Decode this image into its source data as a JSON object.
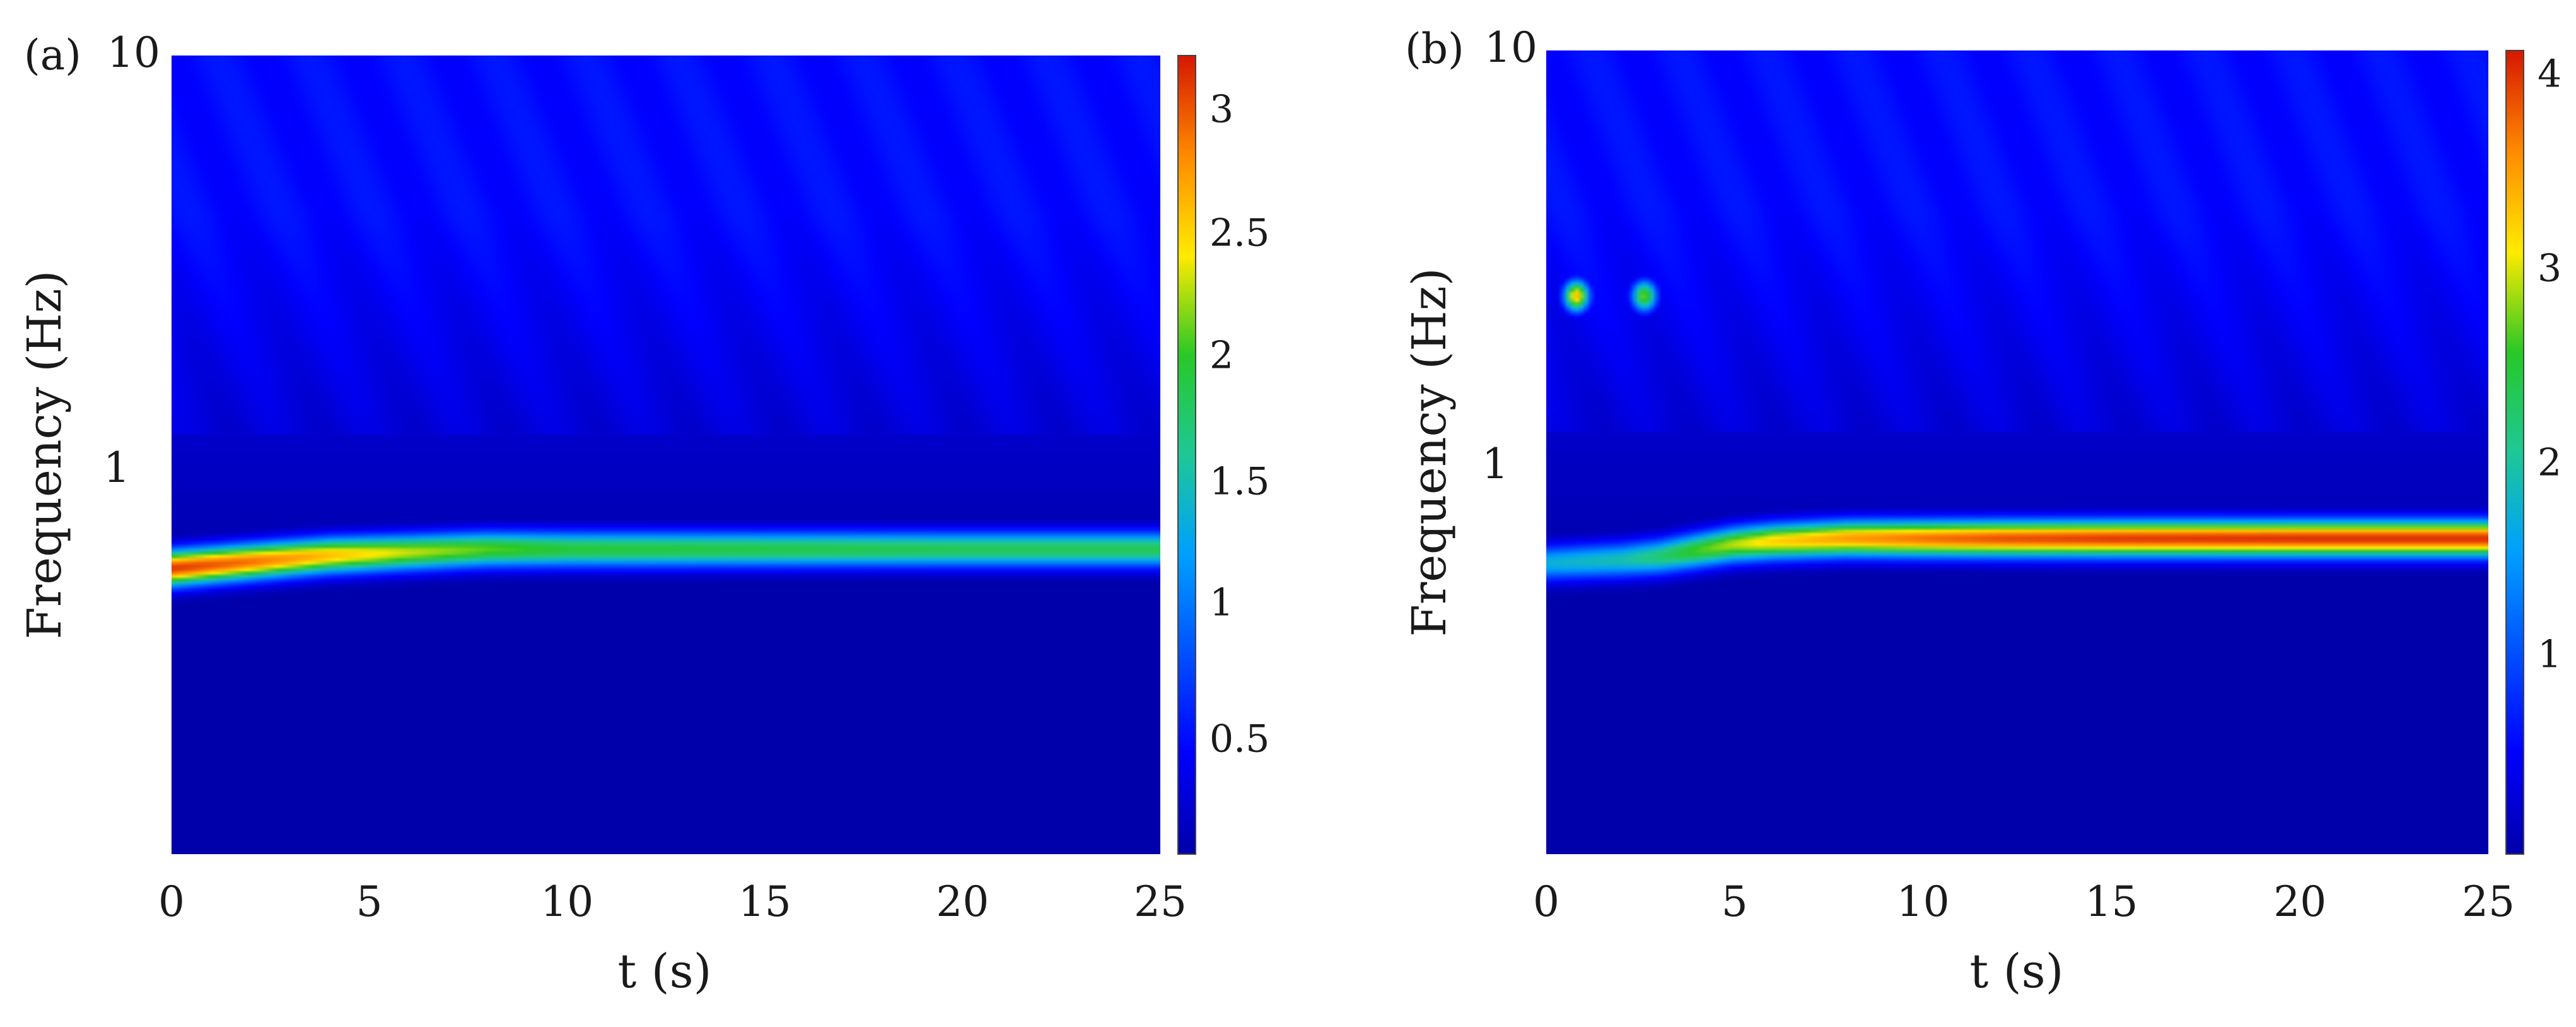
{
  "chart_data": [
    {
      "type": "heatmap",
      "panel_label": "(a)",
      "xlabel": "t (s)",
      "ylabel": "Frequency (Hz)",
      "xlim": [
        0,
        25
      ],
      "ylim": [
        0.1,
        10
      ],
      "y_scale": "log",
      "x_ticks": [
        "0",
        "5",
        "10",
        "15",
        "20",
        "25"
      ],
      "y_ticks": [
        "1",
        "10"
      ],
      "colorbar": {
        "ticks": [
          "0.5",
          "1",
          "1.5",
          "2",
          "2.5",
          "3"
        ],
        "range": [
          0.04,
          3.2
        ]
      },
      "ridges": [
        {
          "t": [
            0,
            2,
            4,
            6,
            8,
            10,
            15,
            20,
            25
          ],
          "frequency_hz": [
            0.52,
            0.54,
            0.56,
            0.57,
            0.58,
            0.58,
            0.58,
            0.58,
            0.58
          ],
          "magnitude": [
            3.1,
            2.9,
            2.6,
            2.3,
            2.1,
            1.95,
            1.9,
            1.85,
            1.85
          ]
        }
      ],
      "hot_spots": []
    },
    {
      "type": "heatmap",
      "panel_label": "(b)",
      "xlabel": "t (s)",
      "ylabel": "Frequency (Hz)",
      "xlim": [
        0,
        25
      ],
      "ylim": [
        0.1,
        10
      ],
      "y_scale": "log",
      "x_ticks": [
        "0",
        "5",
        "10",
        "15",
        "20",
        "25"
      ],
      "y_ticks": [
        "1",
        "10"
      ],
      "colorbar": {
        "ticks": [
          "1",
          "2",
          "3",
          "4"
        ],
        "range": [
          0.05,
          4.2
        ]
      },
      "ridges": [
        {
          "t": [
            0,
            2,
            3,
            4,
            5,
            6,
            8,
            10,
            12,
            15,
            20,
            25
          ],
          "frequency_hz": [
            0.53,
            0.54,
            0.55,
            0.57,
            0.59,
            0.6,
            0.61,
            0.61,
            0.61,
            0.61,
            0.61,
            0.61
          ],
          "magnitude": [
            1.8,
            2.0,
            2.3,
            2.7,
            3.0,
            3.3,
            3.6,
            3.8,
            3.95,
            4.05,
            4.1,
            4.1
          ]
        }
      ],
      "hot_spots": [
        {
          "t": 0.8,
          "frequency_hz": 2.45,
          "magnitude": 3.4
        },
        {
          "t": 2.6,
          "frequency_hz": 2.45,
          "magnitude": 2.8
        }
      ]
    }
  ]
}
